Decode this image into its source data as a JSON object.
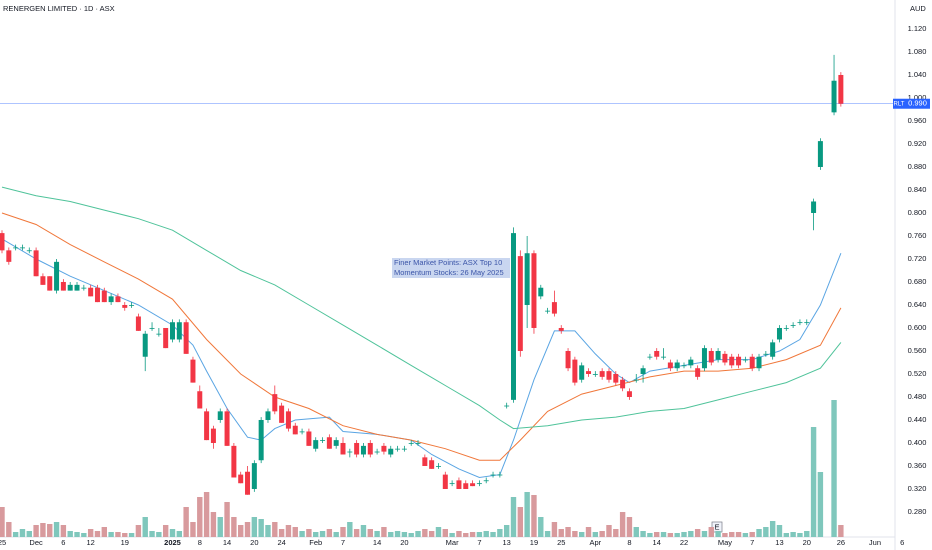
{
  "chart_data": {
    "type": "candlestick",
    "title": "RENERGEN LIMITED · 1D · ASX",
    "currency": "AUD",
    "annotation": [
      "Finer Market Points: ASX Top 10",
      "Momentum Stocks: 26 May 2025"
    ],
    "earnings_marker": "E",
    "categories": [
      "25",
      null,
      null,
      null,
      null,
      "Dec",
      null,
      null,
      null,
      "6",
      null,
      null,
      null,
      "12",
      null,
      null,
      null,
      null,
      "19",
      null,
      null,
      null,
      null,
      null,
      null,
      "2025",
      null,
      null,
      null,
      "8",
      null,
      null,
      null,
      "14",
      null,
      null,
      null,
      "20",
      null,
      null,
      null,
      "24",
      null,
      null,
      null,
      null,
      "Feb",
      null,
      null,
      null,
      "7",
      null,
      null,
      null,
      null,
      "14",
      null,
      null,
      null,
      "20",
      null,
      null,
      null,
      null,
      null,
      null,
      "Mar",
      null,
      null,
      null,
      "7",
      null,
      null,
      null,
      "13",
      null,
      null,
      null,
      "19",
      null,
      null,
      null,
      "25",
      null,
      null,
      null,
      null,
      "Apr",
      null,
      null,
      null,
      null,
      "8",
      null,
      null,
      null,
      "14",
      null,
      null,
      null,
      "22",
      null,
      null,
      null,
      null,
      null,
      "May",
      null,
      null,
      null,
      "7",
      null,
      null,
      null,
      "13",
      null,
      null,
      null,
      "20",
      null,
      null,
      null,
      null,
      "26",
      null,
      null,
      null,
      null,
      "Jun",
      null,
      null,
      null,
      "6"
    ],
    "open": [
      0.765,
      0.735,
      0.74,
      0.74,
      0.735,
      0.735,
      0.69,
      0.69,
      0.665,
      0.68,
      0.665,
      0.665,
      0.67,
      0.67,
      0.67,
      0.665,
      0.645,
      0.655,
      0.64,
      0.64,
      0.62,
      0.55,
      0.6,
      0.59,
      0.6,
      0.58,
      0.58,
      0.61,
      0.545,
      0.49,
      0.455,
      0.425,
      0.44,
      0.455,
      0.395,
      0.345,
      0.35,
      0.32,
      0.37,
      0.44,
      0.485,
      0.465,
      0.455,
      0.43,
      0.42,
      0.42,
      0.39,
      0.405,
      0.41,
      0.395,
      0.4,
      0.385,
      0.4,
      0.38,
      0.4,
      0.385,
      0.395,
      0.38,
      0.39,
      0.39,
      0.4,
      0.4,
      0.375,
      0.37,
      0.36,
      0.345,
      0.33,
      0.335,
      0.33,
      0.33,
      0.33,
      0.335,
      0.345,
      0.345,
      0.465,
      0.475,
      0.725,
      0.64,
      0.73,
      0.655,
      0.63,
      0.645,
      0.6,
      0.56,
      0.545,
      0.51,
      0.525,
      0.52,
      0.525,
      0.525,
      0.52,
      0.51,
      0.49,
      0.51,
      0.52,
      0.55,
      0.56,
      0.55,
      0.54,
      0.53,
      0.535,
      0.535,
      0.53,
      0.53,
      0.56,
      0.545,
      0.555,
      0.55,
      0.55,
      0.545,
      0.55,
      0.53,
      0.555,
      0.55,
      0.58,
      0.6,
      0.605,
      0.61,
      0.61,
      0.8,
      0.88,
      null,
      0.975,
      1.04,
      null,
      null,
      null,
      null,
      null,
      null,
      null,
      null,
      null
    ],
    "high": [
      0.77,
      0.74,
      0.745,
      0.745,
      0.74,
      0.74,
      0.695,
      0.69,
      0.72,
      0.685,
      0.68,
      0.68,
      0.675,
      0.675,
      0.675,
      0.67,
      0.66,
      0.66,
      0.645,
      0.645,
      0.625,
      0.595,
      0.61,
      0.6,
      0.6,
      0.615,
      0.615,
      0.615,
      0.55,
      0.5,
      0.46,
      0.43,
      0.46,
      0.46,
      0.4,
      0.35,
      0.36,
      0.37,
      0.445,
      0.46,
      0.5,
      0.47,
      0.46,
      0.435,
      0.425,
      0.425,
      0.41,
      0.41,
      0.415,
      0.41,
      0.41,
      0.39,
      0.405,
      0.4,
      0.405,
      0.39,
      0.4,
      0.395,
      0.395,
      0.395,
      0.405,
      0.405,
      0.38,
      0.375,
      0.365,
      0.35,
      0.335,
      0.34,
      0.335,
      0.335,
      0.335,
      0.34,
      0.35,
      0.35,
      0.47,
      0.775,
      0.735,
      0.76,
      0.735,
      0.675,
      0.635,
      0.665,
      0.605,
      0.565,
      0.55,
      0.54,
      0.53,
      0.525,
      0.53,
      0.53,
      0.525,
      0.515,
      0.495,
      0.52,
      0.535,
      0.555,
      0.565,
      0.565,
      0.545,
      0.545,
      0.54,
      0.55,
      0.535,
      0.57,
      0.565,
      0.565,
      0.56,
      0.555,
      0.555,
      0.55,
      0.555,
      0.555,
      0.56,
      0.58,
      0.605,
      0.605,
      0.61,
      0.615,
      0.615,
      0.825,
      0.93,
      null,
      1.075,
      1.045,
      null,
      null,
      null,
      null,
      null,
      null,
      null,
      null,
      null
    ],
    "low": [
      0.73,
      0.71,
      0.735,
      0.735,
      0.73,
      0.69,
      0.675,
      0.665,
      0.66,
      0.665,
      0.665,
      0.665,
      0.665,
      0.655,
      0.645,
      0.645,
      0.64,
      0.645,
      0.63,
      0.635,
      0.595,
      0.525,
      0.595,
      0.585,
      0.565,
      0.575,
      0.575,
      0.555,
      0.505,
      0.46,
      0.405,
      0.39,
      0.435,
      0.395,
      0.34,
      0.33,
      0.31,
      0.315,
      0.365,
      0.435,
      0.45,
      0.435,
      0.42,
      0.415,
      0.415,
      0.395,
      0.385,
      0.4,
      0.39,
      0.39,
      0.38,
      0.375,
      0.375,
      0.375,
      0.375,
      0.38,
      0.38,
      0.375,
      0.385,
      0.385,
      0.395,
      0.395,
      0.36,
      0.355,
      0.355,
      0.32,
      0.325,
      0.32,
      0.32,
      0.325,
      0.325,
      0.33,
      0.34,
      0.34,
      0.46,
      0.47,
      0.55,
      0.6,
      0.59,
      0.65,
      0.625,
      0.62,
      0.59,
      0.525,
      0.5,
      0.505,
      0.515,
      0.515,
      0.51,
      0.505,
      0.5,
      0.49,
      0.475,
      0.505,
      0.505,
      0.545,
      0.545,
      0.545,
      0.525,
      0.525,
      0.53,
      0.53,
      0.51,
      0.525,
      0.535,
      0.54,
      0.535,
      0.53,
      0.53,
      0.54,
      0.525,
      0.525,
      0.55,
      0.545,
      0.575,
      0.595,
      0.6,
      0.605,
      0.605,
      0.77,
      0.875,
      null,
      0.97,
      0.985,
      null,
      null,
      null,
      null,
      null,
      null,
      null,
      null,
      null
    ],
    "close": [
      0.735,
      0.715,
      0.74,
      0.74,
      0.735,
      0.69,
      0.675,
      0.665,
      0.715,
      0.665,
      0.675,
      0.675,
      0.67,
      0.655,
      0.645,
      0.645,
      0.655,
      0.645,
      0.635,
      0.64,
      0.595,
      0.59,
      0.6,
      0.59,
      0.565,
      0.61,
      0.61,
      0.555,
      0.505,
      0.46,
      0.405,
      0.4,
      0.455,
      0.395,
      0.34,
      0.33,
      0.31,
      0.365,
      0.44,
      0.455,
      0.455,
      0.435,
      0.425,
      0.415,
      0.42,
      0.395,
      0.405,
      0.405,
      0.39,
      0.405,
      0.38,
      0.385,
      0.38,
      0.395,
      0.38,
      0.385,
      0.385,
      0.39,
      0.39,
      0.39,
      0.4,
      0.4,
      0.36,
      0.355,
      0.36,
      0.32,
      0.33,
      0.32,
      0.32,
      0.325,
      0.33,
      0.335,
      0.345,
      0.345,
      0.465,
      0.765,
      0.56,
      0.73,
      0.6,
      0.67,
      0.63,
      0.625,
      0.595,
      0.53,
      0.505,
      0.535,
      0.52,
      0.52,
      0.515,
      0.51,
      0.505,
      0.495,
      0.48,
      0.51,
      0.53,
      0.55,
      0.55,
      0.55,
      0.53,
      0.54,
      0.535,
      0.545,
      0.515,
      0.565,
      0.54,
      0.56,
      0.54,
      0.535,
      0.535,
      0.545,
      0.53,
      0.55,
      0.555,
      0.575,
      0.6,
      0.6,
      0.605,
      0.61,
      0.61,
      0.82,
      0.925,
      null,
      1.03,
      0.99,
      null,
      null,
      null,
      null,
      null,
      null,
      null,
      null,
      null
    ],
    "volume": [
      30,
      15,
      5,
      8,
      6,
      12,
      14,
      13,
      15,
      12,
      6,
      5,
      4,
      8,
      6,
      10,
      5,
      5,
      4,
      4,
      12,
      20,
      6,
      5,
      12,
      8,
      6,
      30,
      15,
      40,
      45,
      25,
      20,
      35,
      20,
      12,
      15,
      20,
      18,
      12,
      15,
      8,
      12,
      10,
      6,
      8,
      5,
      6,
      8,
      5,
      10,
      15,
      8,
      12,
      8,
      6,
      10,
      5,
      6,
      5,
      4,
      6,
      8,
      6,
      10,
      8,
      4,
      6,
      4,
      5,
      5,
      6,
      5,
      8,
      12,
      40,
      30,
      45,
      42,
      20,
      6,
      15,
      8,
      10,
      6,
      5,
      10,
      5,
      6,
      12,
      8,
      25,
      20,
      10,
      6,
      4,
      5,
      5,
      4,
      4,
      5,
      6,
      8,
      6,
      10,
      6,
      4,
      5,
      5,
      4,
      5,
      8,
      10,
      16,
      12,
      4,
      5,
      4,
      6,
      110,
      65,
      null,
      137,
      12,
      null,
      null,
      null,
      null,
      null,
      null,
      null,
      null,
      null
    ],
    "up_color": "#089981",
    "down_color": "#f23645",
    "volume_up_color": "#7fc7bc",
    "volume_down_color": "#d89a9d",
    "moving_averages": [
      {
        "color": "#5aa5e3",
        "x": [
          0,
          5,
          10,
          15,
          20,
          25,
          28,
          30,
          33,
          36,
          38,
          40,
          43,
          48,
          50,
          55,
          60,
          63,
          67,
          70,
          73,
          75,
          78,
          81,
          84,
          87,
          90,
          92,
          95,
          100,
          105,
          110,
          114,
          117,
          120,
          123
        ],
        "values": [
          0.755,
          0.72,
          0.69,
          0.665,
          0.64,
          0.605,
          0.57,
          0.525,
          0.46,
          0.41,
          0.405,
          0.425,
          0.44,
          0.445,
          0.42,
          0.415,
          0.405,
          0.38,
          0.355,
          0.34,
          0.345,
          0.405,
          0.51,
          0.595,
          0.595,
          0.555,
          0.52,
          0.505,
          0.525,
          0.535,
          0.545,
          0.545,
          0.56,
          0.58,
          0.64,
          0.73
        ]
      },
      {
        "color": "#f0773a",
        "x": [
          0,
          5,
          10,
          15,
          20,
          25,
          30,
          35,
          40,
          45,
          50,
          55,
          60,
          65,
          70,
          73,
          76,
          80,
          85,
          90,
          95,
          100,
          105,
          110,
          115,
          120,
          123
        ],
        "values": [
          0.8,
          0.78,
          0.745,
          0.715,
          0.685,
          0.65,
          0.58,
          0.52,
          0.48,
          0.46,
          0.43,
          0.415,
          0.405,
          0.39,
          0.37,
          0.37,
          0.405,
          0.455,
          0.485,
          0.5,
          0.515,
          0.525,
          0.525,
          0.53,
          0.545,
          0.57,
          0.635
        ]
      },
      {
        "color": "#4fc39a",
        "x": [
          0,
          5,
          10,
          15,
          20,
          25,
          30,
          35,
          40,
          45,
          50,
          55,
          60,
          65,
          70,
          73,
          75,
          80,
          85,
          90,
          95,
          100,
          105,
          110,
          115,
          120,
          123
        ],
        "values": [
          0.845,
          0.83,
          0.82,
          0.805,
          0.79,
          0.77,
          0.735,
          0.7,
          0.675,
          0.64,
          0.605,
          0.57,
          0.535,
          0.5,
          0.465,
          0.44,
          0.425,
          0.43,
          0.44,
          0.445,
          0.455,
          0.46,
          0.475,
          0.49,
          0.505,
          0.53,
          0.575
        ]
      }
    ],
    "price_line": {
      "symbol": "RLT",
      "value": 0.99,
      "label": "0.990",
      "color": "#2962ff"
    },
    "ylim": [
      0.2365,
      1.1704
    ],
    "yticks": [
      {
        "value": 0.28,
        "label": "0.280"
      },
      {
        "value": 0.32,
        "label": "0.320"
      },
      {
        "value": 0.36,
        "label": "0.360"
      },
      {
        "value": 0.4,
        "label": "0.400"
      },
      {
        "value": 0.44,
        "label": "0.440"
      },
      {
        "value": 0.48,
        "label": "0.480"
      },
      {
        "value": 0.52,
        "label": "0.520"
      },
      {
        "value": 0.56,
        "label": "0.560"
      },
      {
        "value": 0.6,
        "label": "0.600"
      },
      {
        "value": 0.64,
        "label": "0.640"
      },
      {
        "value": 0.68,
        "label": "0.680"
      },
      {
        "value": 0.72,
        "label": "0.720"
      },
      {
        "value": 0.76,
        "label": "0.760"
      },
      {
        "value": 0.8,
        "label": "0.800"
      },
      {
        "value": 0.84,
        "label": "0.840"
      },
      {
        "value": 0.88,
        "label": "0.880"
      },
      {
        "value": 0.92,
        "label": "0.920"
      },
      {
        "value": 0.96,
        "label": "0.960"
      },
      {
        "value": 1.0,
        "label": "1.000"
      },
      {
        "value": 1.04,
        "label": "1.040"
      },
      {
        "value": 1.08,
        "label": "1.080"
      },
      {
        "value": 1.12,
        "label": "1.120"
      }
    ],
    "grid": false
  }
}
